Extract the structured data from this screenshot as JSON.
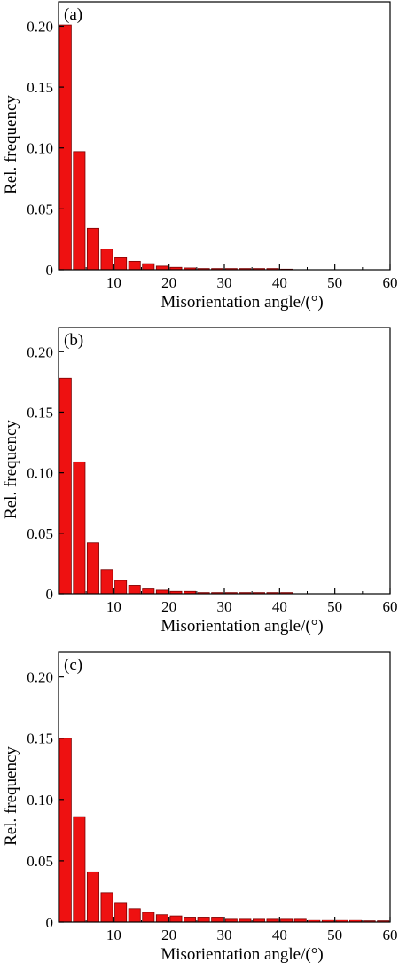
{
  "colors": {
    "bar_fill": "#ee1111",
    "bar_stroke": "#7a0000",
    "axis": "#000000"
  },
  "chart_data": [
    {
      "type": "bar",
      "panel_label": "(a)",
      "xlabel": "Misorientation angle/(°)",
      "ylabel": "Rel. frequency",
      "xlim": [
        0,
        60
      ],
      "ylim": [
        0,
        0.22
      ],
      "xticks": [
        "10",
        "20",
        "30",
        "40",
        "50",
        "60"
      ],
      "yticks": [
        "0",
        "0.05",
        "0.10",
        "0.15",
        "0.20"
      ],
      "bin_width": 2.5,
      "bin_centers": [
        1.25,
        3.75,
        6.25,
        8.75,
        11.25,
        13.75,
        16.25,
        18.75,
        21.25,
        23.75,
        26.25,
        28.75,
        31.25,
        33.75,
        36.25,
        38.75,
        41.25
      ],
      "values": [
        0.201,
        0.097,
        0.034,
        0.017,
        0.01,
        0.007,
        0.005,
        0.003,
        0.002,
        0.0015,
        0.001,
        0.001,
        0.001,
        0.001,
        0.001,
        0.001,
        0.0005
      ]
    },
    {
      "type": "bar",
      "panel_label": "(b)",
      "xlabel": "Misorientation angle/(°)",
      "ylabel": "Rel. frequency",
      "xlim": [
        0,
        60
      ],
      "ylim": [
        0,
        0.22
      ],
      "xticks": [
        "10",
        "20",
        "30",
        "40",
        "50",
        "60"
      ],
      "yticks": [
        "0",
        "0.05",
        "0.10",
        "0.15",
        "0.20"
      ],
      "bin_width": 2.5,
      "bin_centers": [
        1.25,
        3.75,
        6.25,
        8.75,
        11.25,
        13.75,
        16.25,
        18.75,
        21.25,
        23.75,
        26.25,
        28.75,
        31.25,
        33.75,
        36.25,
        38.75,
        41.25
      ],
      "values": [
        0.178,
        0.109,
        0.042,
        0.02,
        0.011,
        0.007,
        0.004,
        0.003,
        0.002,
        0.002,
        0.001,
        0.001,
        0.001,
        0.001,
        0.001,
        0.001,
        0.001
      ]
    },
    {
      "type": "bar",
      "panel_label": "(c)",
      "xlabel": "Misorientation angle/(°)",
      "ylabel": "Rel. frequency",
      "xlim": [
        0,
        60
      ],
      "ylim": [
        0,
        0.22
      ],
      "xticks": [
        "10",
        "20",
        "30",
        "40",
        "50",
        "60"
      ],
      "yticks": [
        "0",
        "0.05",
        "0.10",
        "0.15",
        "0.20"
      ],
      "bin_width": 2.5,
      "bin_centers": [
        1.25,
        3.75,
        6.25,
        8.75,
        11.25,
        13.75,
        16.25,
        18.75,
        21.25,
        23.75,
        26.25,
        28.75,
        31.25,
        33.75,
        36.25,
        38.75,
        41.25,
        43.75,
        46.25,
        48.75,
        51.25,
        53.75,
        56.25,
        58.75
      ],
      "values": [
        0.15,
        0.086,
        0.041,
        0.024,
        0.016,
        0.011,
        0.008,
        0.006,
        0.005,
        0.004,
        0.004,
        0.004,
        0.003,
        0.003,
        0.003,
        0.003,
        0.003,
        0.003,
        0.002,
        0.002,
        0.002,
        0.002,
        0.001,
        0.001
      ]
    }
  ]
}
